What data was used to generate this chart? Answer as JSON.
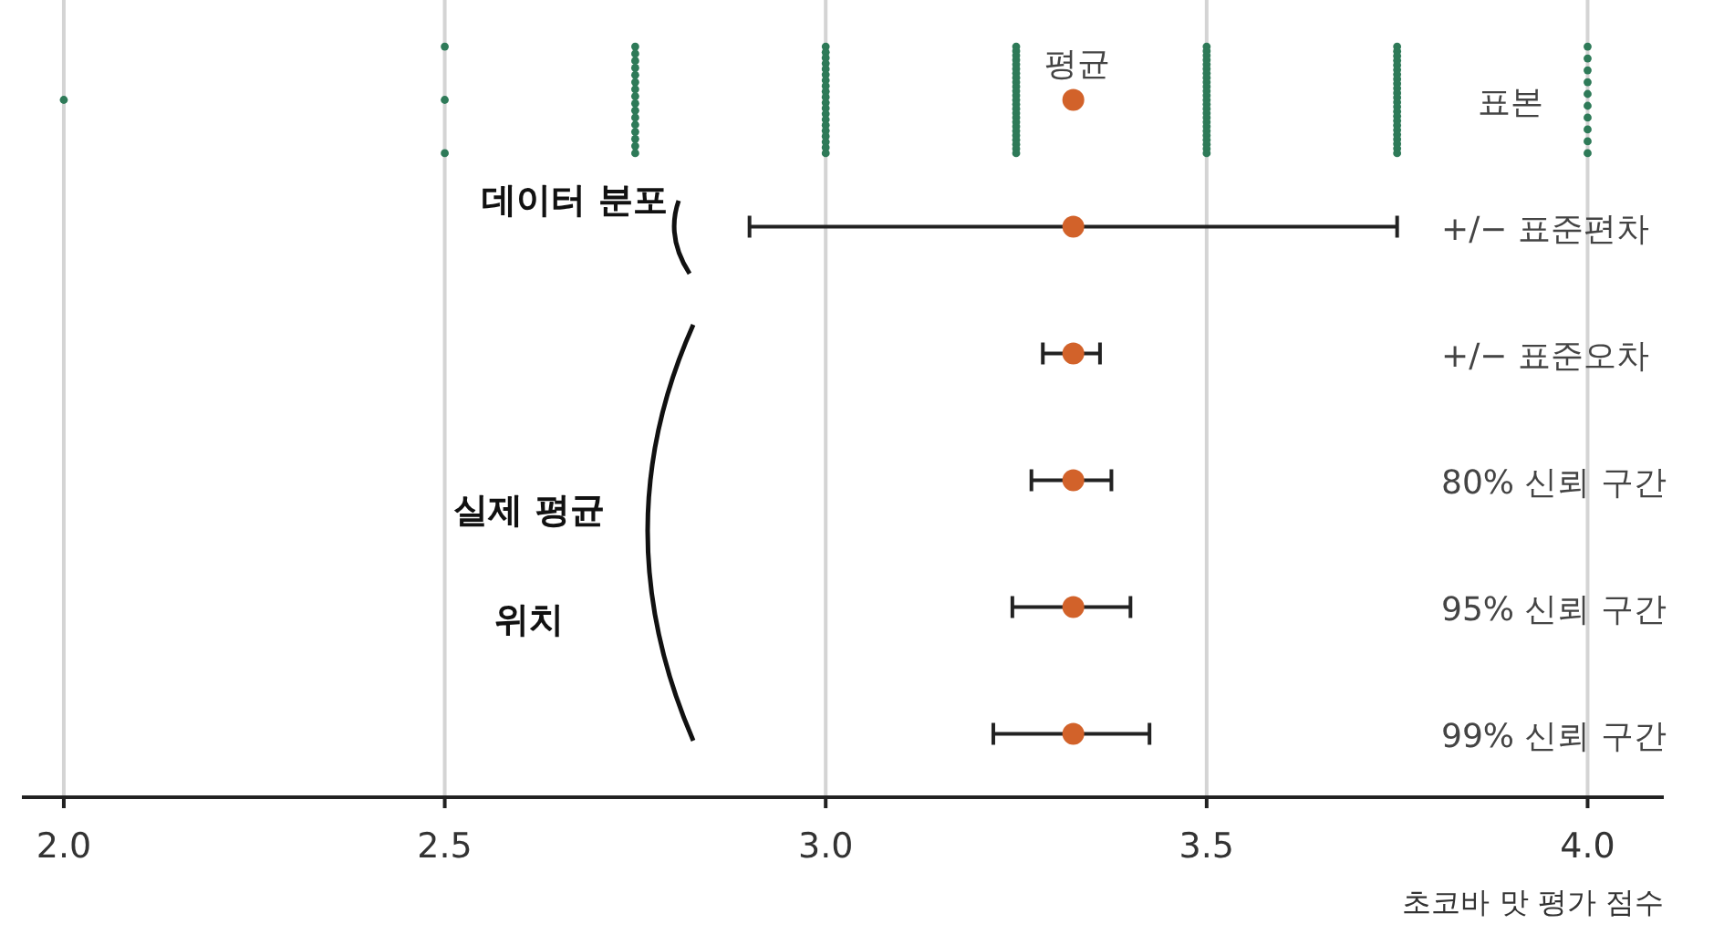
{
  "chart_data": {
    "type": "scatter",
    "orientation": "horizontal",
    "xlabel": "초코바 맛 평가 점수",
    "categories": [
      "표본",
      "+/− 표준편차",
      "+/− 표준오차",
      "80% 신뢰 구간",
      "95% 신뢰 구간",
      "99% 신뢰 구간"
    ],
    "xlim": [
      1.945,
      4.1
    ],
    "xticks": [
      {
        "value": 2,
        "label": "2.0"
      },
      {
        "value": 2.5,
        "label": "2.5"
      },
      {
        "value": 3,
        "label": "3.0"
      },
      {
        "value": 3.5,
        "label": "3.5"
      },
      {
        "value": 4,
        "label": "4.0"
      }
    ],
    "grid": "x",
    "marker": "circle",
    "annotations": [
      "데이터 분포",
      "실제 평균 위치"
    ],
    "series": [
      {
        "type": "scatter",
        "color": "#2e7a58",
        "x": [
          "표본",
          "표본",
          "표본",
          "표본",
          "표본",
          "표본",
          "표본",
          "표본",
          "표본",
          "표본",
          "표본",
          "표본",
          "표본",
          "표본",
          "표본",
          "표본",
          "표본",
          "표본",
          "표본",
          "표본",
          "표본",
          "표본",
          "표본",
          "표본",
          "표본",
          "표본",
          "표본",
          "표본",
          "표본",
          "표본",
          "표본",
          "표본",
          "표본",
          "표본",
          "표본",
          "표본",
          "표본",
          "표본",
          "표본",
          "표본",
          "표본",
          "표본",
          "표본",
          "표본",
          "표본",
          "표본",
          "표본",
          "표본",
          "표본",
          "표본",
          "표본",
          "표본",
          "표본",
          "표본",
          "표본",
          "표본",
          "표본",
          "표본",
          "표본",
          "표본",
          "표본",
          "표본",
          "표본",
          "표본",
          "표본",
          "표본",
          "표본",
          "표본",
          "표본",
          "표본",
          "표본",
          "표본",
          "표본",
          "표본",
          "표본",
          "표본",
          "표본",
          "표본",
          "표본",
          "표본",
          "표본",
          "표본",
          "표본",
          "표본",
          "표본",
          "표본",
          "표본",
          "표본",
          "표본",
          "표본",
          "표본",
          "표본",
          "표본",
          "표본",
          "표본",
          "표본",
          "표본",
          "표본",
          "표본",
          "표본",
          "표본",
          "표본",
          "표본",
          "표본",
          "표본",
          "표본",
          "표본",
          "표본",
          "표본",
          "표본",
          "표본",
          "표본",
          "표본",
          "표본",
          "표본",
          "표본",
          "표본",
          "표본",
          "표본",
          "표본",
          "표본",
          "표본",
          "표본",
          "표본"
        ],
        "values": [
          2.0,
          2.5,
          2.5,
          2.5,
          2.75,
          2.75,
          2.75,
          2.75,
          2.75,
          2.75,
          2.75,
          2.75,
          2.75,
          2.75,
          2.75,
          2.75,
          2.75,
          2.75,
          2.75,
          2.75,
          3.0,
          3.0,
          3.0,
          3.0,
          3.0,
          3.0,
          3.0,
          3.0,
          3.0,
          3.0,
          3.0,
          3.0,
          3.0,
          3.0,
          3.0,
          3.0,
          3.0,
          3.0,
          3.0,
          3.0,
          3.25,
          3.25,
          3.25,
          3.25,
          3.25,
          3.25,
          3.25,
          3.25,
          3.25,
          3.25,
          3.25,
          3.25,
          3.25,
          3.25,
          3.25,
          3.25,
          3.25,
          3.25,
          3.25,
          3.25,
          3.25,
          3.25,
          3.25,
          3.25,
          3.25,
          3.5,
          3.5,
          3.5,
          3.5,
          3.5,
          3.5,
          3.5,
          3.5,
          3.5,
          3.5,
          3.5,
          3.5,
          3.5,
          3.5,
          3.5,
          3.5,
          3.5,
          3.5,
          3.5,
          3.5,
          3.5,
          3.5,
          3.5,
          3.5,
          3.5,
          3.75,
          3.75,
          3.75,
          3.75,
          3.75,
          3.75,
          3.75,
          3.75,
          3.75,
          3.75,
          3.75,
          3.75,
          3.75,
          3.75,
          3.75,
          3.75,
          3.75,
          3.75,
          3.75,
          3.75,
          3.75,
          3.75,
          3.75,
          3.75,
          4.0,
          4.0,
          4.0,
          4.0,
          4.0,
          4.0,
          4.0,
          4.0,
          4.0,
          4.0
        ]
      },
      {
        "type": "scatter",
        "name": "평균",
        "color": "#d2622a",
        "values": [
          3.325,
          3.325,
          3.325,
          3.325,
          3.325,
          3.325
        ],
        "errors": [
          null,
          [
            2.9,
            3.75
          ],
          [
            3.285,
            3.36
          ],
          [
            3.27,
            3.375
          ],
          [
            3.245,
            3.4
          ],
          [
            3.22,
            3.425
          ]
        ]
      }
    ]
  }
}
